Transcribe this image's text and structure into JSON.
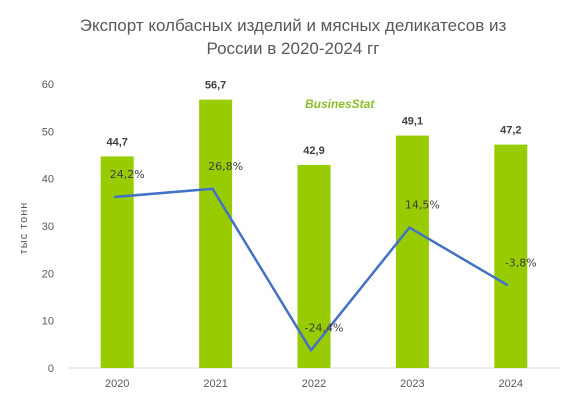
{
  "title_line1": "Экспорт колбасных изделий и мясных деликатесов из",
  "title_line2": "России в 2020-2024 гг",
  "logo": "BusinesStat",
  "colors": {
    "bar": "#99cc00",
    "line": "#4472c4",
    "text": "#595959",
    "axis": "#d9d9d9"
  },
  "chart_data": {
    "type": "bar",
    "categories": [
      "2020",
      "2021",
      "2022",
      "2023",
      "2024"
    ],
    "series": [
      {
        "name": "",
        "type": "bar",
        "values": [
          44.7,
          56.7,
          42.9,
          49.1,
          47.2
        ],
        "labels": [
          "44,7",
          "56,7",
          "42,9",
          "49,1",
          "47,2"
        ]
      },
      {
        "name": "",
        "type": "line",
        "values": [
          24.2,
          26.8,
          -24.4,
          14.5,
          -3.8
        ],
        "labels": [
          "24,2%",
          "26,8%",
          "-24,4%",
          "14,5%",
          "-3,8%"
        ]
      }
    ],
    "ylabel": "тыс тонн",
    "ylim": [
      0,
      60
    ],
    "yticks": [
      0,
      10,
      20,
      30,
      40,
      50,
      60
    ],
    "grid": false
  }
}
